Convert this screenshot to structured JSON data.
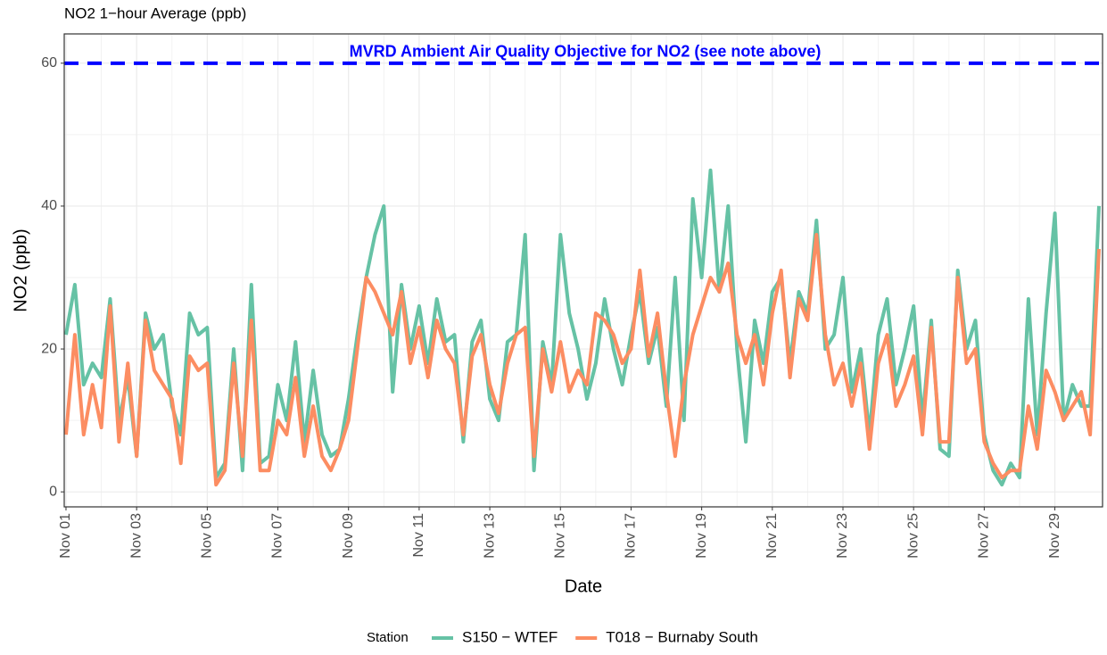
{
  "chart_data": {
    "type": "line",
    "title": "NO2 1−hour Average (ppb)",
    "x_label": "Date",
    "y_label": "NO2 (ppb)",
    "legend_title": "Station",
    "legend_position": "bottom",
    "grid": true,
    "xlim": [
      0.95,
      30.35
    ],
    "ylim": [
      -2.1,
      64.1
    ],
    "xticks": [
      {
        "value": 1,
        "label": "Nov 01"
      },
      {
        "value": 3,
        "label": "Nov 03"
      },
      {
        "value": 5,
        "label": "Nov 05"
      },
      {
        "value": 7,
        "label": "Nov 07"
      },
      {
        "value": 9,
        "label": "Nov 09"
      },
      {
        "value": 11,
        "label": "Nov 11"
      },
      {
        "value": 13,
        "label": "Nov 13"
      },
      {
        "value": 15,
        "label": "Nov 15"
      },
      {
        "value": 17,
        "label": "Nov 17"
      },
      {
        "value": 19,
        "label": "Nov 19"
      },
      {
        "value": 21,
        "label": "Nov 21"
      },
      {
        "value": 23,
        "label": "Nov 23"
      },
      {
        "value": 25,
        "label": "Nov 25"
      },
      {
        "value": 27,
        "label": "Nov 27"
      },
      {
        "value": 29,
        "label": "Nov 29"
      }
    ],
    "yticks": [
      0,
      20,
      40,
      60
    ],
    "hline": {
      "value": 60,
      "label": "MVRD Ambient Air Quality Objective for NO2 (see note above)",
      "color": "#0000ff"
    },
    "x": [
      1,
      1.25,
      1.5,
      1.75,
      2,
      2.25,
      2.5,
      2.75,
      3,
      3.25,
      3.5,
      3.75,
      4,
      4.25,
      4.5,
      4.75,
      5,
      5.25,
      5.5,
      5.75,
      6,
      6.25,
      6.5,
      6.75,
      7,
      7.25,
      7.5,
      7.75,
      8,
      8.25,
      8.5,
      8.75,
      9,
      9.25,
      9.5,
      9.75,
      10,
      10.25,
      10.5,
      10.75,
      11,
      11.25,
      11.5,
      11.75,
      12,
      12.25,
      12.5,
      12.75,
      13,
      13.25,
      13.5,
      13.75,
      14,
      14.25,
      14.5,
      14.75,
      15,
      15.25,
      15.5,
      15.75,
      16,
      16.25,
      16.5,
      16.75,
      17,
      17.25,
      17.5,
      17.75,
      18,
      18.25,
      18.5,
      18.75,
      19,
      19.25,
      19.5,
      19.75,
      20,
      20.25,
      20.5,
      20.75,
      21,
      21.25,
      21.5,
      21.75,
      22,
      22.25,
      22.5,
      22.75,
      23,
      23.25,
      23.5,
      23.75,
      24,
      24.25,
      24.5,
      24.75,
      25,
      25.25,
      25.5,
      25.75,
      26,
      26.25,
      26.5,
      26.75,
      27,
      27.25,
      27.5,
      27.75,
      28,
      28.25,
      28.5,
      28.75,
      29,
      29.25,
      29.5,
      29.75,
      30,
      30.25
    ],
    "series": [
      {
        "name": "S150 − WTEF",
        "color": "#66c2a5",
        "values": [
          22,
          29,
          15,
          18,
          16,
          27,
          10,
          16,
          5,
          25,
          20,
          22,
          12,
          8,
          25,
          22,
          23,
          2,
          4,
          20,
          3,
          29,
          4,
          5,
          15,
          10,
          21,
          7,
          17,
          8,
          5,
          6,
          13,
          22,
          30,
          36,
          40,
          14,
          29,
          20,
          26,
          18,
          27,
          21,
          22,
          7,
          21,
          24,
          13,
          10,
          21,
          22,
          36,
          3,
          21,
          15,
          36,
          25,
          20,
          13,
          18,
          27,
          20,
          15,
          22,
          28,
          18,
          23,
          12,
          30,
          10,
          41,
          30,
          45,
          28,
          40,
          20,
          7,
          24,
          18,
          28,
          30,
          18,
          28,
          25,
          38,
          20,
          22,
          30,
          14,
          20,
          8,
          22,
          27,
          15,
          20,
          26,
          10,
          24,
          6,
          5,
          31,
          20,
          24,
          8,
          3,
          1,
          4,
          2,
          27,
          8,
          25,
          39,
          10,
          15,
          12,
          12,
          40
        ]
      },
      {
        "name": "T018 − Burnaby South",
        "color": "#fc8d62",
        "values": [
          8,
          22,
          8,
          15,
          9,
          26,
          7,
          18,
          5,
          24,
          17,
          15,
          13,
          4,
          19,
          17,
          18,
          1,
          3,
          18,
          5,
          24,
          3,
          3,
          10,
          8,
          16,
          5,
          12,
          5,
          3,
          6,
          10,
          20,
          30,
          28,
          25,
          22,
          28,
          18,
          23,
          16,
          24,
          20,
          18,
          8,
          19,
          22,
          15,
          11,
          18,
          22,
          23,
          5,
          20,
          14,
          21,
          14,
          17,
          15,
          25,
          24,
          22,
          18,
          20,
          31,
          19,
          25,
          14,
          5,
          15,
          22,
          26,
          30,
          28,
          32,
          22,
          18,
          22,
          15,
          25,
          31,
          16,
          27,
          24,
          36,
          22,
          15,
          18,
          12,
          18,
          6,
          18,
          22,
          12,
          15,
          19,
          8,
          23,
          7,
          7,
          30,
          18,
          20,
          7,
          4,
          2,
          3,
          3,
          12,
          6,
          17,
          14,
          10,
          12,
          14,
          8,
          34
        ]
      }
    ]
  }
}
